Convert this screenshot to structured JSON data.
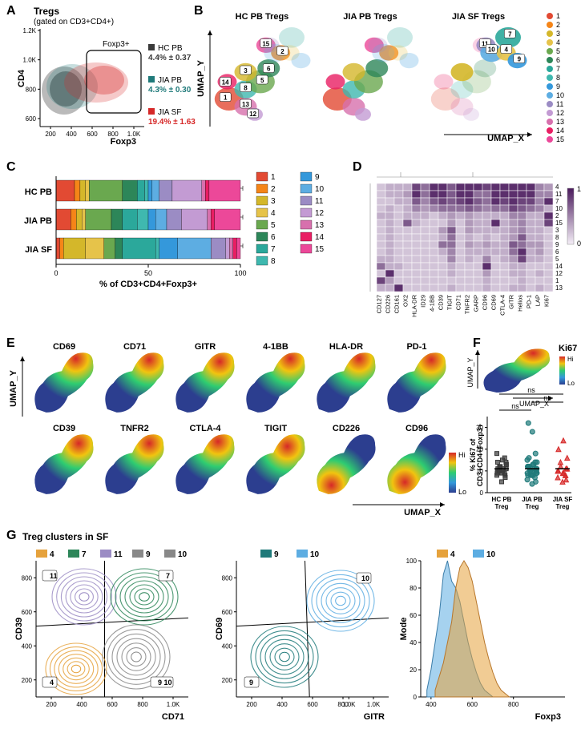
{
  "panelA": {
    "label": "A",
    "title": "Tregs",
    "subtitle": "(gated on CD3+CD4+)",
    "y_axis": "CD4",
    "x_axis": "Foxp3",
    "gate_label": "Foxp3+",
    "xticks": [
      "200",
      "400",
      "600",
      "800",
      "1.0K"
    ],
    "yticks": [
      "600",
      "800",
      "1.0K",
      "1.2K"
    ],
    "legend": [
      {
        "name": "HC PB",
        "value": "4.4% ± 0.37",
        "color": "#3a3a3a"
      },
      {
        "name": "JIA PB",
        "value": "4.3% ± 0.30",
        "color": "#1f7a7a"
      },
      {
        "name": "JIA SF",
        "value": "19.4% ± 1.63",
        "color": "#d62828"
      }
    ]
  },
  "panelB": {
    "label": "B",
    "plots": [
      "HC PB Tregs",
      "JIA PB Tregs",
      "JIA SF Tregs"
    ],
    "y_axis": "UMAP_Y",
    "x_axis": "UMAP_X",
    "cluster_labels_left": [
      "1",
      "3",
      "5",
      "6",
      "8",
      "12",
      "13",
      "14",
      "15",
      "2"
    ],
    "cluster_labels_right": [
      "4",
      "7",
      "9",
      "10",
      "11"
    ],
    "cluster_colors": {
      "1": "#e24a33",
      "2": "#f58518",
      "3": "#d4b72a",
      "4": "#e6c34a",
      "5": "#6aa84f",
      "6": "#2d8659",
      "7": "#2ba89b",
      "8": "#3fb8af",
      "9": "#3498db",
      "10": "#5dade2",
      "11": "#9b8cc4",
      "12": "#c39bd3",
      "13": "#d770ad",
      "14": "#e91e63",
      "15": "#ec4899"
    }
  },
  "panelC": {
    "label": "C",
    "x_axis": "% of CD3+CD4+Foxp3+",
    "rows": [
      "HC PB",
      "JIA PB",
      "JIA SF"
    ],
    "data": {
      "HC PB": [
        10,
        3,
        3,
        2,
        18,
        8,
        4,
        2,
        2,
        4,
        7,
        16,
        2,
        2,
        17
      ],
      "JIA PB": [
        8,
        3,
        3,
        2,
        14,
        6,
        8,
        6,
        4,
        6,
        8,
        14,
        2,
        2,
        14
      ],
      "JIA SF": [
        2,
        2,
        12,
        10,
        6,
        4,
        18,
        2,
        10,
        18,
        8,
        2,
        2,
        2,
        2
      ]
    },
    "xticks": [
      "0",
      "50",
      "100"
    ]
  },
  "panelD": {
    "label": "D",
    "markers": [
      "CD127",
      "CD226",
      "CD161",
      "OX2",
      "HLA-DR",
      "ID29",
      "4-1BB",
      "CD39",
      "TIGIT",
      "CD71",
      "TNFR2",
      "GARP",
      "CD96",
      "CD69",
      "CTLA-4",
      "GITR",
      "Helios",
      "PD-1",
      "LAP",
      "Ki67"
    ],
    "cluster_order": [
      "4",
      "11",
      "7",
      "10",
      "2",
      "15",
      "3",
      "8",
      "9",
      "6",
      "5",
      "14",
      "12",
      "1",
      "13"
    ],
    "scale": [
      "0",
      "1"
    ],
    "color_low": "#f4eef7",
    "color_high": "#4a1a5c",
    "values": {
      "4": [
        0.2,
        0.3,
        0.3,
        0.3,
        0.8,
        0.6,
        0.9,
        0.9,
        0.7,
        0.9,
        0.9,
        0.9,
        0.8,
        0.9,
        0.9,
        0.9,
        0.9,
        0.9,
        0.5,
        0.4
      ],
      "11": [
        0.2,
        0.3,
        0.3,
        0.4,
        0.9,
        0.6,
        0.9,
        0.9,
        0.7,
        0.9,
        0.9,
        0.6,
        0.6,
        0.9,
        0.9,
        0.9,
        0.9,
        0.9,
        0.5,
        0.5
      ],
      "7": [
        0.2,
        0.2,
        0.3,
        0.3,
        0.7,
        0.5,
        0.7,
        0.8,
        0.7,
        0.8,
        0.9,
        0.7,
        0.6,
        0.9,
        0.8,
        0.9,
        0.8,
        0.8,
        0.5,
        0.9
      ],
      "10": [
        0.2,
        0.3,
        0.2,
        0.3,
        0.5,
        0.4,
        0.5,
        0.6,
        0.6,
        0.6,
        0.7,
        0.6,
        0.5,
        0.6,
        0.6,
        0.8,
        0.7,
        0.6,
        0.5,
        0.3
      ],
      "2": [
        0.3,
        0.3,
        0.2,
        0.3,
        0.3,
        0.3,
        0.2,
        0.3,
        0.4,
        0.3,
        0.4,
        0.3,
        0.3,
        0.3,
        0.3,
        0.5,
        0.5,
        0.3,
        0.3,
        0.9
      ],
      "15": [
        0.2,
        0.3,
        0.2,
        0.7,
        0.3,
        0.2,
        0.2,
        0.2,
        0.4,
        0.2,
        0.4,
        0.3,
        0.3,
        0.9,
        0.3,
        0.4,
        0.5,
        0.3,
        0.3,
        0.8
      ],
      "3": [
        0.2,
        0.3,
        0.2,
        0.2,
        0.2,
        0.2,
        0.2,
        0.4,
        0.7,
        0.2,
        0.4,
        0.3,
        0.3,
        0.3,
        0.3,
        0.4,
        0.5,
        0.3,
        0.3,
        0.2
      ],
      "8": [
        0.2,
        0.3,
        0.2,
        0.2,
        0.2,
        0.2,
        0.2,
        0.3,
        0.6,
        0.2,
        0.3,
        0.2,
        0.3,
        0.2,
        0.3,
        0.4,
        0.7,
        0.3,
        0.3,
        0.2
      ],
      "9": [
        0.2,
        0.3,
        0.2,
        0.2,
        0.2,
        0.2,
        0.2,
        0.6,
        0.6,
        0.2,
        0.4,
        0.3,
        0.4,
        0.3,
        0.3,
        0.7,
        0.6,
        0.4,
        0.4,
        0.2
      ],
      "6": [
        0.2,
        0.3,
        0.2,
        0.2,
        0.2,
        0.2,
        0.2,
        0.3,
        0.5,
        0.2,
        0.3,
        0.3,
        0.3,
        0.3,
        0.3,
        0.6,
        0.9,
        0.3,
        0.4,
        0.2
      ],
      "5": [
        0.3,
        0.3,
        0.2,
        0.2,
        0.2,
        0.2,
        0.2,
        0.2,
        0.5,
        0.2,
        0.3,
        0.2,
        0.5,
        0.2,
        0.3,
        0.4,
        0.8,
        0.3,
        0.3,
        0.2
      ],
      "14": [
        0.6,
        0.3,
        0.3,
        0.2,
        0.2,
        0.2,
        0.2,
        0.2,
        0.3,
        0.2,
        0.2,
        0.2,
        0.9,
        0.2,
        0.2,
        0.3,
        0.3,
        0.2,
        0.2,
        0.2
      ],
      "12": [
        0.2,
        0.9,
        0.2,
        0.2,
        0.2,
        0.2,
        0.2,
        0.2,
        0.3,
        0.2,
        0.2,
        0.2,
        0.4,
        0.2,
        0.2,
        0.3,
        0.3,
        0.2,
        0.3,
        0.2
      ],
      "1": [
        0.8,
        0.4,
        0.2,
        0.2,
        0.2,
        0.2,
        0.2,
        0.2,
        0.2,
        0.2,
        0.2,
        0.2,
        0.3,
        0.2,
        0.2,
        0.2,
        0.3,
        0.2,
        0.2,
        0.2
      ],
      "13": [
        0.3,
        0.3,
        0.9,
        0.2,
        0.2,
        0.2,
        0.2,
        0.2,
        0.3,
        0.2,
        0.2,
        0.2,
        0.3,
        0.2,
        0.2,
        0.3,
        0.3,
        0.2,
        0.3,
        0.2
      ]
    }
  },
  "panelE": {
    "label": "E",
    "y_axis": "UMAP_Y",
    "x_axis": "UMAP_X",
    "markers_row1": [
      "CD69",
      "CD71",
      "GITR",
      "4-1BB",
      "HLA-DR",
      "PD-1"
    ],
    "markers_row2": [
      "CD39",
      "TNFR2",
      "CTLA-4",
      "TIGIT",
      "CD226",
      "CD96"
    ],
    "scale": [
      "Hi",
      "Lo"
    ],
    "gradient": [
      "#d62828",
      "#f1c40f",
      "#2ecc71",
      "#3498db",
      "#2c3e8f"
    ]
  },
  "panelF": {
    "label": "F",
    "marker": "Ki67",
    "y_axis_small": "UMAP_Y",
    "x_axis_small": "UMAP_X",
    "scale": [
      "Hi",
      "Lo"
    ],
    "y_axis": "% Ki67 of\nCD3+CD4+Foxp3+",
    "groups": [
      "HC PB\nTreg",
      "JIA PB\nTreg",
      "JIA SF\nTreg"
    ],
    "colors": [
      "#3a3a3a",
      "#1f7a7a",
      "#d62828"
    ],
    "yticks": [
      "0",
      "10",
      "20",
      "30"
    ],
    "ns": "ns",
    "points": {
      "HC PB": [
        5,
        7,
        8,
        9,
        10,
        10,
        11,
        12,
        12,
        13,
        14,
        15,
        16,
        18,
        8,
        9,
        11,
        13,
        10,
        12,
        14,
        9,
        11
      ],
      "JIA PB": [
        4,
        5,
        6,
        7,
        8,
        8,
        9,
        10,
        10,
        11,
        12,
        13,
        14,
        15,
        18,
        28,
        32,
        9,
        11,
        8,
        10,
        12,
        13,
        11,
        9,
        10,
        8,
        12,
        14,
        16,
        10,
        11
      ],
      "JIA SF": [
        5,
        6,
        7,
        8,
        9,
        10,
        11,
        12,
        14,
        16,
        20,
        24,
        8,
        10,
        11,
        9
      ]
    }
  },
  "panelG": {
    "label": "G",
    "title": "Treg clusters in SF",
    "plot1": {
      "y_axis": "CD39",
      "x_axis": "CD71",
      "ticks": [
        "200",
        "400",
        "600",
        "800",
        "1.0K"
      ],
      "yticks": [
        "200",
        "400",
        "600",
        "800"
      ],
      "clusters": [
        {
          "n": "4",
          "color": "#e6a23c"
        },
        {
          "n": "7",
          "color": "#2d8659"
        },
        {
          "n": "11",
          "color": "#9b8cc4"
        },
        {
          "n": "9",
          "color": "#888888"
        },
        {
          "n": "10",
          "color": "#888888"
        }
      ],
      "quads": [
        "11",
        "7",
        "4",
        "9 10"
      ]
    },
    "plot2": {
      "y_axis": "CD69",
      "x_axis": "GITR",
      "ticks": [
        "200",
        "400",
        "600",
        "800",
        "1.0K"
      ],
      "yticks": [
        "200",
        "400",
        "600",
        "800"
      ],
      "clusters": [
        {
          "n": "9",
          "color": "#1f7a7a"
        },
        {
          "n": "10",
          "color": "#5dade2"
        }
      ],
      "quads": [
        "10",
        "9"
      ]
    },
    "plot3": {
      "y_axis": "Mode",
      "x_axis": "Foxp3",
      "xticks": [
        "400",
        "600",
        "800",
        "1.0K"
      ],
      "yticks": [
        "0",
        "20",
        "40",
        "60",
        "80",
        "100"
      ],
      "clusters": [
        {
          "n": "4",
          "color": "#e6a23c"
        },
        {
          "n": "10",
          "color": "#5dade2"
        }
      ],
      "hist4": [
        [
          420,
          5
        ],
        [
          440,
          15
        ],
        [
          460,
          25
        ],
        [
          480,
          40
        ],
        [
          500,
          55
        ],
        [
          520,
          80
        ],
        [
          540,
          95
        ],
        [
          560,
          100
        ],
        [
          580,
          95
        ],
        [
          600,
          85
        ],
        [
          620,
          70
        ],
        [
          640,
          55
        ],
        [
          660,
          40
        ],
        [
          680,
          28
        ],
        [
          700,
          18
        ],
        [
          720,
          10
        ],
        [
          740,
          5
        ],
        [
          780,
          0
        ]
      ],
      "hist10": [
        [
          380,
          5
        ],
        [
          400,
          20
        ],
        [
          420,
          40
        ],
        [
          440,
          60
        ],
        [
          460,
          90
        ],
        [
          480,
          100
        ],
        [
          500,
          85
        ],
        [
          520,
          80
        ],
        [
          540,
          70
        ],
        [
          560,
          55
        ],
        [
          580,
          40
        ],
        [
          600,
          28
        ],
        [
          620,
          18
        ],
        [
          640,
          10
        ],
        [
          660,
          5
        ],
        [
          700,
          0
        ]
      ]
    }
  }
}
